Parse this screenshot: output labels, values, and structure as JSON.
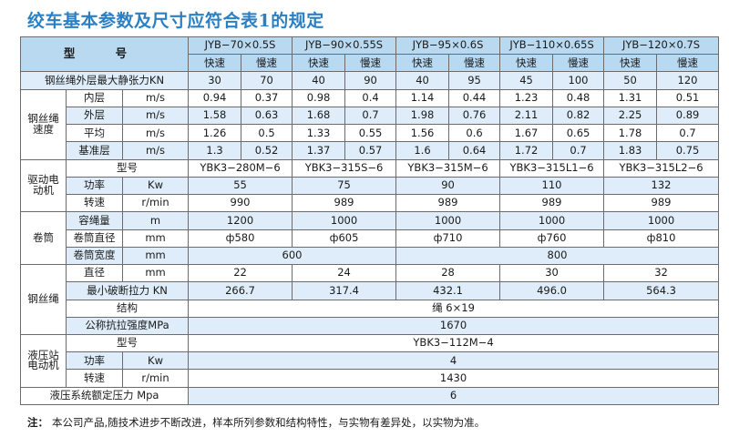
{
  "title": "绞车基本参数及尺寸应符合表1的规定",
  "header": {
    "xinghao": "型    号",
    "models": [
      "JYB−70×0.5S",
      "JYB−90×0.55S",
      "JYB−95×0.6S",
      "JYB−110×0.65S",
      "JYB−120×0.7S"
    ],
    "fast": "快速",
    "slow": "慢速"
  },
  "tension": {
    "label": "钢丝绳外层最大静张力KN",
    "values": [
      "30",
      "70",
      "40",
      "90",
      "40",
      "95",
      "45",
      "100",
      "50",
      "120"
    ]
  },
  "speed": {
    "group": "钢丝绳速度",
    "rows": [
      {
        "label": "内层",
        "unit": "m/s",
        "values": [
          "0.94",
          "0.37",
          "0.98",
          "0.4",
          "1.14",
          "0.44",
          "1.23",
          "0.48",
          "1.31",
          "0.51"
        ]
      },
      {
        "label": "外层",
        "unit": "m/s",
        "values": [
          "1.58",
          "0.63",
          "1.68",
          "0.7",
          "1.98",
          "0.76",
          "2.11",
          "0.82",
          "2.25",
          "0.89"
        ]
      },
      {
        "label": "平均",
        "unit": "m/s",
        "values": [
          "1.26",
          "0.5",
          "1.33",
          "0.55",
          "1.56",
          "0.6",
          "1.67",
          "0.65",
          "1.78",
          "0.7"
        ]
      },
      {
        "label": "基准层",
        "unit": "m/s",
        "values": [
          "1.3",
          "0.52",
          "1.37",
          "0.57",
          "1.6",
          "0.64",
          "1.72",
          "0.7",
          "1.83",
          "0.75"
        ]
      }
    ]
  },
  "motor": {
    "group": "驱动电动机",
    "model": {
      "label": "型号",
      "values": [
        "YBK3−280M−6",
        "YBK3−315S−6",
        "YBK3−315M−6",
        "YBK3−315L1−6",
        "YBK3−315L2−6"
      ]
    },
    "power": {
      "label": "功率",
      "unit": "Kw",
      "values": [
        "55",
        "75",
        "90",
        "110",
        "132"
      ]
    },
    "rpm": {
      "label": "转速",
      "unit": "r/min",
      "values": [
        "990",
        "989",
        "989",
        "989",
        "989"
      ]
    }
  },
  "drum": {
    "group": "卷筒",
    "capacity": {
      "label": "容绳量",
      "unit": "m",
      "values": [
        "1200",
        "1000",
        "1000",
        "1000",
        "1000"
      ]
    },
    "diameter": {
      "label": "卷筒直径",
      "unit": "mm",
      "values": [
        "ф580",
        "ф605",
        "ф710",
        "ф760",
        "ф810"
      ]
    },
    "width": {
      "label": "卷筒宽度",
      "unit": "mm",
      "values": [
        "600",
        "800"
      ]
    }
  },
  "rope": {
    "group": "钢丝绳",
    "dia": {
      "label": "直径",
      "unit": "mm",
      "values": [
        "22",
        "24",
        "28",
        "30",
        "32"
      ]
    },
    "breaking": {
      "label": "最小破断拉力 KN",
      "values": [
        "266.7",
        "317.4",
        "432.1",
        "496.0",
        "564.3"
      ]
    },
    "structure": {
      "label": "结构",
      "value": "绳 6×19"
    },
    "strength": {
      "label": "公称抗拉强度MPa",
      "value": "1670"
    }
  },
  "hydraulic": {
    "group": "液压站电动机",
    "model": {
      "label": "型号",
      "value": "YBK3−112M−4"
    },
    "power": {
      "label": "功率",
      "unit": "Kw",
      "value": "4"
    },
    "rpm": {
      "label": "转速",
      "unit": "r/min",
      "value": "1430"
    }
  },
  "pressure": {
    "label": "液压系统额定压力  Mpa",
    "value": "6"
  },
  "note": {
    "prefix": "注：",
    "text": "本公司产品,随技术进步不断改进，样本所列参数和结构特性，与实物有差异处，以实物为准。"
  }
}
